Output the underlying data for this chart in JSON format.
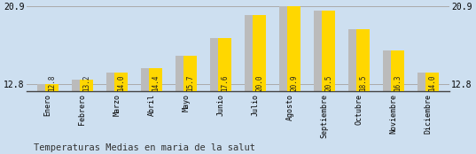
{
  "categories": [
    "Enero",
    "Febrero",
    "Marzo",
    "Abril",
    "Mayo",
    "Junio",
    "Julio",
    "Agosto",
    "Septiembre",
    "Octubre",
    "Noviembre",
    "Diciembre"
  ],
  "values": [
    12.8,
    13.2,
    14.0,
    14.4,
    15.7,
    17.6,
    20.0,
    20.9,
    20.5,
    18.5,
    16.3,
    14.0
  ],
  "bar_color_yellow": "#FFD700",
  "bar_color_gray": "#BBBBBB",
  "background_color": "#CDDFF0",
  "y_min": 12.0,
  "y_max": 21.2,
  "yticks": [
    12.8,
    20.9
  ],
  "title": "Temperaturas Medias en maria de la salut",
  "title_fontsize": 7.5,
  "tick_fontsize": 7,
  "label_fontsize": 6,
  "value_fontsize": 5.5,
  "bar_bottom": 12.0
}
